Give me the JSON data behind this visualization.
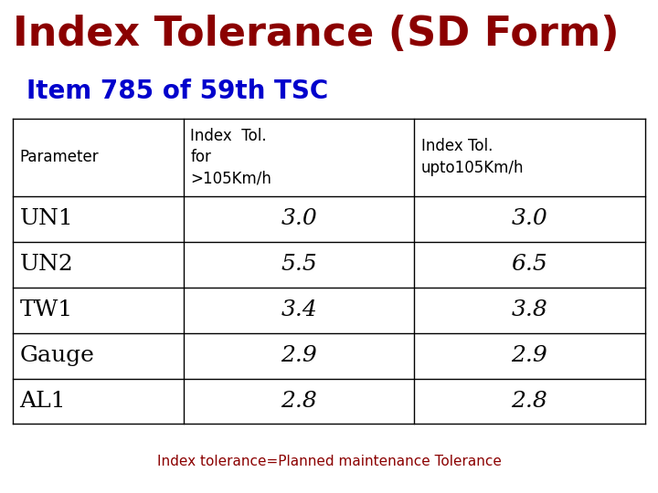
{
  "title": "Index Tolerance (SD Form)",
  "subtitle": "Item 785 of 59th TSC",
  "title_color": "#8B0000",
  "subtitle_color": "#0000CC",
  "footer": "Index tolerance=Planned maintenance Tolerance",
  "footer_color": "#8B0000",
  "col_header0": "Parameter",
  "col_header1": "Index  Tol.\nfor\n>105Km/h",
  "col_header2": "Index Tol.\nupto105Km/h",
  "rows": [
    [
      "UN1",
      "3.0",
      "3.0"
    ],
    [
      "UN2",
      "5.5",
      "6.5"
    ],
    [
      "TW1",
      "3.4",
      "3.8"
    ],
    [
      "Gauge",
      "2.9",
      "2.9"
    ],
    [
      "AL1",
      "2.8",
      "2.8"
    ]
  ],
  "background_color": "#ffffff",
  "table_text_color": "#000000",
  "line_color": "#000000",
  "title_fontsize": 32,
  "subtitle_fontsize": 20,
  "header_fontsize": 12,
  "data_fontsize": 18,
  "footer_fontsize": 11
}
